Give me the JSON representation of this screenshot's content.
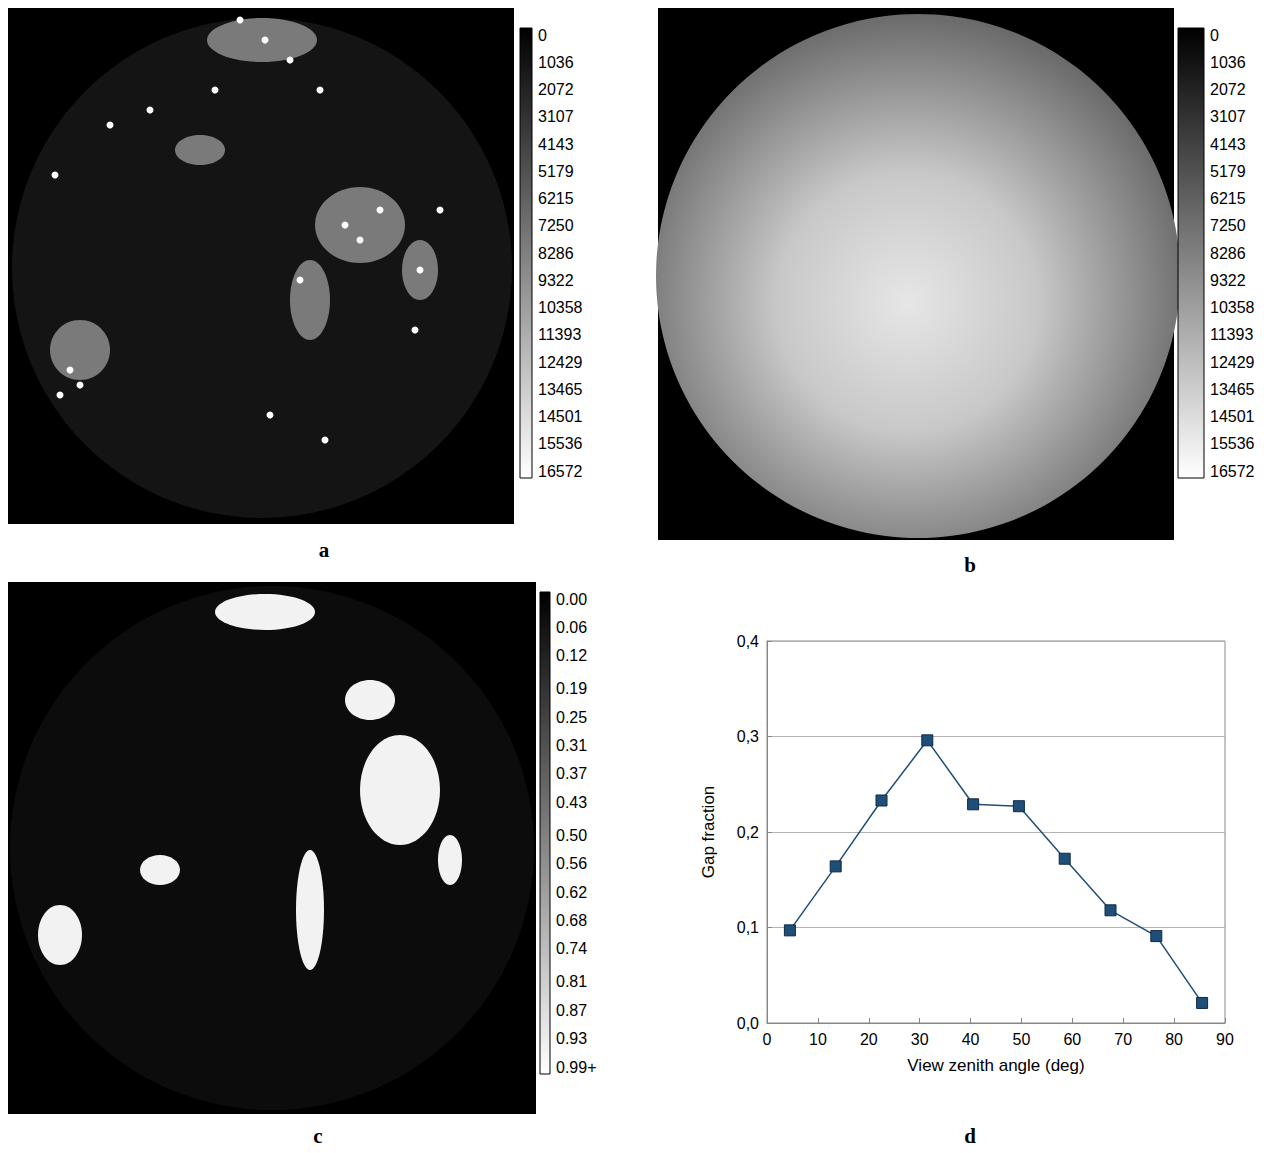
{
  "panels": [
    {
      "letter": "a",
      "colorbar": {
        "range": [
          0,
          16572
        ],
        "ticks": [
          0,
          1036,
          2072,
          3107,
          4143,
          5179,
          6215,
          7250,
          8286,
          9322,
          10358,
          11393,
          12429,
          13465,
          14501,
          15536,
          16572
        ]
      }
    },
    {
      "letter": "b",
      "colorbar": {
        "range": [
          0,
          16572
        ],
        "ticks": [
          0,
          1036,
          2072,
          3107,
          4143,
          5179,
          6215,
          7250,
          8286,
          9322,
          10358,
          11393,
          12429,
          13465,
          14501,
          15536,
          16572
        ]
      }
    },
    {
      "letter": "c",
      "colorbar": {
        "range": [
          0,
          0.99
        ],
        "ticks": [
          {
            "value": 0,
            "label": "0.00"
          },
          0.06,
          0.12,
          0.19,
          0.25,
          0.31,
          0.37,
          0.43,
          {
            "value": 0.5,
            "label": "0.50"
          },
          0.56,
          0.62,
          0.68,
          0.74,
          0.81,
          0.87,
          0.93,
          {
            "value": 0.99,
            "label": "0.99+"
          }
        ]
      }
    }
  ],
  "chart_data": {
    "panel": "d",
    "type": "line",
    "x_label": "View zenith angle (deg)",
    "y_label": "Gap fraction",
    "x": [
      4.5,
      13.5,
      22.5,
      31.5,
      40.5,
      49.5,
      58.5,
      67.5,
      76.5,
      85.5
    ],
    "values": [
      0.097,
      0.164,
      0.233,
      0.296,
      0.229,
      0.227,
      0.172,
      0.118,
      0.091,
      0.021
    ],
    "color": "#1f4e79",
    "marker": "square",
    "line_style": "solid",
    "xlim": [
      0,
      90
    ],
    "xticks": [
      0,
      10,
      20,
      30,
      40,
      50,
      60,
      70,
      80,
      90
    ],
    "ylim": [
      0,
      0.4
    ],
    "yticks": [
      {
        "value": 0,
        "label": "0,0"
      },
      {
        "value": 0.1,
        "label": "0,1"
      },
      {
        "value": 0.2,
        "label": "0,2"
      },
      {
        "value": 0.3,
        "label": "0,3"
      },
      {
        "value": 0.4,
        "label": "0,4"
      }
    ],
    "grid": true
  }
}
